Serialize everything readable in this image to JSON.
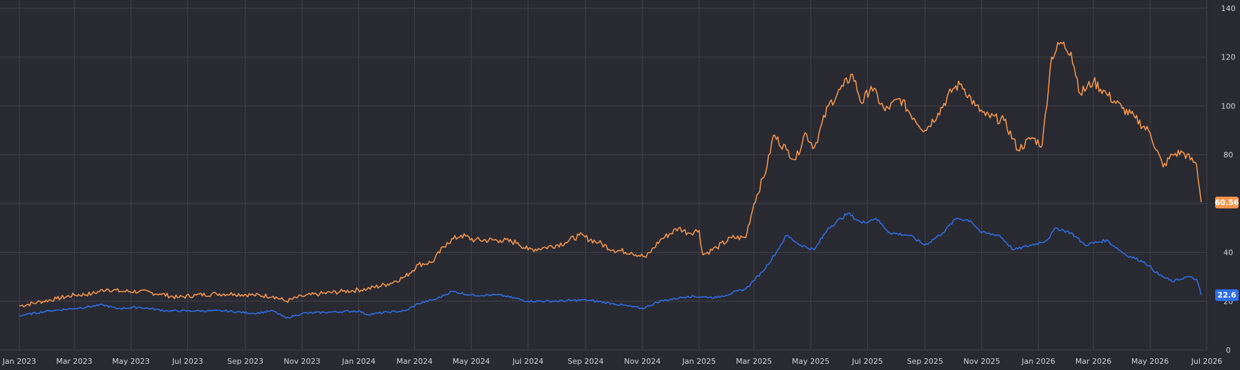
{
  "chart_data": {
    "type": "line",
    "title": "",
    "xlabel": "",
    "ylabel": "",
    "x_range": [
      "2023-01-01",
      "2026-07-01"
    ],
    "ylim": [
      0,
      140
    ],
    "y_ticks": [
      0,
      20,
      40,
      60,
      80,
      100,
      120,
      140
    ],
    "y_axis_side": "right",
    "grid": true,
    "x_ticks": [
      {
        "date": "2023-01-01",
        "label": "Jan 2023"
      },
      {
        "date": "2023-03-01",
        "label": "Mar 2023"
      },
      {
        "date": "2023-05-01",
        "label": "May 2023"
      },
      {
        "date": "2023-07-01",
        "label": "Jul 2023"
      },
      {
        "date": "2023-09-01",
        "label": "Sep 2023"
      },
      {
        "date": "2023-11-01",
        "label": "Nov 2023"
      },
      {
        "date": "2024-01-01",
        "label": "Jan 2024"
      },
      {
        "date": "2024-03-01",
        "label": "Mar 2024"
      },
      {
        "date": "2024-05-01",
        "label": "May 2024"
      },
      {
        "date": "2024-07-01",
        "label": "Jul 2024"
      },
      {
        "date": "2024-09-01",
        "label": "Sep 2024"
      },
      {
        "date": "2024-11-01",
        "label": "Nov 2024"
      },
      {
        "date": "2025-01-01",
        "label": "Jan 2025"
      },
      {
        "date": "2025-03-01",
        "label": "Mar 2025"
      },
      {
        "date": "2025-05-01",
        "label": "May 2025"
      },
      {
        "date": "2025-07-01",
        "label": "Jul 2025"
      },
      {
        "date": "2025-09-01",
        "label": "Sep 2025"
      },
      {
        "date": "2025-11-01",
        "label": "Nov 2025"
      },
      {
        "date": "2026-01-01",
        "label": "Jan 2026"
      },
      {
        "date": "2026-03-01",
        "label": "Mar 2026"
      },
      {
        "date": "2026-05-01",
        "label": "May 2026"
      },
      {
        "date": "2026-07-01",
        "label": "Jul 2026"
      }
    ],
    "series": [
      {
        "color": "#f4964e",
        "last_value_label": "60.56",
        "points": [
          [
            "2023-01-01",
            18
          ],
          [
            "2023-01-20",
            19.5
          ],
          [
            "2023-02-10",
            21
          ],
          [
            "2023-03-01",
            22.5
          ],
          [
            "2023-03-20",
            23
          ],
          [
            "2023-04-05",
            25
          ],
          [
            "2023-04-20",
            24
          ],
          [
            "2023-05-10",
            24
          ],
          [
            "2023-06-01",
            23
          ],
          [
            "2023-06-20",
            21.5
          ],
          [
            "2023-07-10",
            22.5
          ],
          [
            "2023-08-01",
            23
          ],
          [
            "2023-08-20",
            23
          ],
          [
            "2023-09-10",
            22.5
          ],
          [
            "2023-10-01",
            22
          ],
          [
            "2023-10-15",
            20
          ],
          [
            "2023-11-01",
            22
          ],
          [
            "2023-11-20",
            23
          ],
          [
            "2023-12-15",
            24
          ],
          [
            "2024-01-10",
            25
          ],
          [
            "2024-02-01",
            27
          ],
          [
            "2024-02-20",
            30
          ],
          [
            "2024-03-05",
            35
          ],
          [
            "2024-03-20",
            36
          ],
          [
            "2024-04-05",
            44
          ],
          [
            "2024-04-20",
            47
          ],
          [
            "2024-05-05",
            45
          ],
          [
            "2024-06-01",
            45
          ],
          [
            "2024-06-20",
            44
          ],
          [
            "2024-07-01",
            41
          ],
          [
            "2024-07-20",
            42
          ],
          [
            "2024-08-10",
            44
          ],
          [
            "2024-08-25",
            47
          ],
          [
            "2024-09-15",
            44
          ],
          [
            "2024-10-01",
            41
          ],
          [
            "2024-10-20",
            40
          ],
          [
            "2024-11-05",
            38
          ],
          [
            "2024-11-20",
            45
          ],
          [
            "2024-12-10",
            50
          ],
          [
            "2024-12-20",
            48
          ],
          [
            "2025-01-01",
            49
          ],
          [
            "2025-01-05",
            39
          ],
          [
            "2025-01-20",
            42
          ],
          [
            "2025-02-05",
            46
          ],
          [
            "2025-02-20",
            46
          ],
          [
            "2025-03-01",
            60
          ],
          [
            "2025-03-15",
            75
          ],
          [
            "2025-03-22",
            88
          ],
          [
            "2025-04-05",
            82
          ],
          [
            "2025-04-15",
            78
          ],
          [
            "2025-04-25",
            89
          ],
          [
            "2025-05-05",
            83
          ],
          [
            "2025-05-20",
            100
          ],
          [
            "2025-06-05",
            108
          ],
          [
            "2025-06-15",
            113
          ],
          [
            "2025-06-25",
            101
          ],
          [
            "2025-07-05",
            108
          ],
          [
            "2025-07-20",
            98
          ],
          [
            "2025-08-05",
            103
          ],
          [
            "2025-08-20",
            95
          ],
          [
            "2025-09-01",
            90
          ],
          [
            "2025-09-15",
            97
          ],
          [
            "2025-10-01",
            107
          ],
          [
            "2025-10-10",
            109
          ],
          [
            "2025-10-25",
            100
          ],
          [
            "2025-11-05",
            96
          ],
          [
            "2025-11-25",
            94
          ],
          [
            "2025-12-10",
            82
          ],
          [
            "2025-12-25",
            87
          ],
          [
            "2026-01-05",
            84
          ],
          [
            "2026-01-15",
            120
          ],
          [
            "2026-01-25",
            126
          ],
          [
            "2026-02-05",
            122
          ],
          [
            "2026-02-15",
            105
          ],
          [
            "2026-03-01",
            110
          ],
          [
            "2026-03-15",
            105
          ],
          [
            "2026-04-01",
            99
          ],
          [
            "2026-04-15",
            95
          ],
          [
            "2026-05-01",
            89
          ],
          [
            "2026-05-15",
            75
          ],
          [
            "2026-05-25",
            80
          ],
          [
            "2026-06-05",
            81
          ],
          [
            "2026-06-20",
            76
          ],
          [
            "2026-06-25",
            60.56
          ]
        ]
      },
      {
        "color": "#2f6ee6",
        "last_value_label": "22.6",
        "points": [
          [
            "2023-01-01",
            14
          ],
          [
            "2023-02-01",
            16
          ],
          [
            "2023-03-01",
            17
          ],
          [
            "2023-04-01",
            18.5
          ],
          [
            "2023-04-15",
            17
          ],
          [
            "2023-05-10",
            17.5
          ],
          [
            "2023-06-10",
            16
          ],
          [
            "2023-07-10",
            16
          ],
          [
            "2023-08-10",
            16
          ],
          [
            "2023-09-10",
            15
          ],
          [
            "2023-10-01",
            16
          ],
          [
            "2023-10-15",
            13
          ],
          [
            "2023-11-01",
            15
          ],
          [
            "2023-12-01",
            15.5
          ],
          [
            "2024-01-01",
            16
          ],
          [
            "2024-01-10",
            14.5
          ],
          [
            "2024-02-01",
            15.5
          ],
          [
            "2024-02-20",
            16
          ],
          [
            "2024-03-05",
            19
          ],
          [
            "2024-03-25",
            21
          ],
          [
            "2024-04-10",
            24
          ],
          [
            "2024-05-01",
            22.5
          ],
          [
            "2024-06-01",
            22.5
          ],
          [
            "2024-07-01",
            20
          ],
          [
            "2024-08-01",
            20
          ],
          [
            "2024-09-01",
            20.5
          ],
          [
            "2024-10-01",
            19
          ],
          [
            "2024-11-01",
            17
          ],
          [
            "2024-11-20",
            20
          ],
          [
            "2024-12-20",
            22
          ],
          [
            "2025-01-20",
            21.5
          ],
          [
            "2025-02-20",
            25
          ],
          [
            "2025-03-10",
            32
          ],
          [
            "2025-03-25",
            40
          ],
          [
            "2025-04-05",
            47
          ],
          [
            "2025-04-20",
            43
          ],
          [
            "2025-05-05",
            41
          ],
          [
            "2025-05-20",
            50
          ],
          [
            "2025-06-10",
            56
          ],
          [
            "2025-06-25",
            52
          ],
          [
            "2025-07-10",
            54
          ],
          [
            "2025-07-25",
            48
          ],
          [
            "2025-08-15",
            47
          ],
          [
            "2025-09-01",
            43
          ],
          [
            "2025-09-20",
            48
          ],
          [
            "2025-10-05",
            54
          ],
          [
            "2025-10-20",
            53
          ],
          [
            "2025-11-01",
            48
          ],
          [
            "2025-11-20",
            47
          ],
          [
            "2025-12-05",
            41
          ],
          [
            "2025-12-25",
            43
          ],
          [
            "2026-01-10",
            45
          ],
          [
            "2026-01-20",
            50
          ],
          [
            "2026-02-05",
            48
          ],
          [
            "2026-02-20",
            43
          ],
          [
            "2026-03-15",
            45
          ],
          [
            "2026-04-05",
            39
          ],
          [
            "2026-04-25",
            36
          ],
          [
            "2026-05-10",
            31
          ],
          [
            "2026-05-25",
            28
          ],
          [
            "2026-06-10",
            30
          ],
          [
            "2026-06-20",
            29
          ],
          [
            "2026-06-25",
            22.6
          ]
        ]
      }
    ]
  }
}
